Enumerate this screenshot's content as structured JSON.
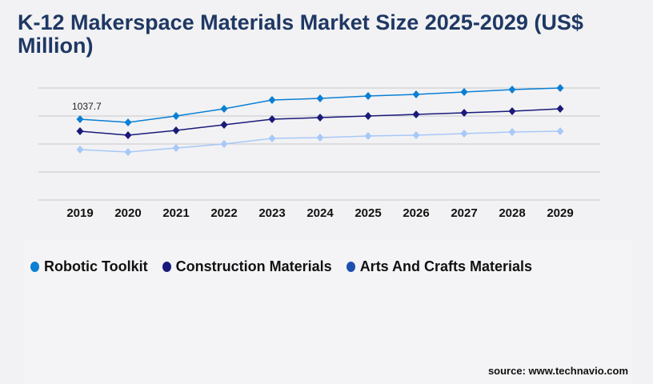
{
  "title": "K-12 Makerspace Materials Market Size 2025-2029 (US$ Million)",
  "source": "source: www.technavio.com",
  "chart_data": {
    "type": "line",
    "title": "K-12 Makerspace Materials Market Size 2025-2029 (US$ Million)",
    "x": [
      "2019",
      "2020",
      "2021",
      "2022",
      "2023",
      "2024",
      "2025",
      "2026",
      "2027",
      "2028",
      "2029"
    ],
    "ylim": [
      0,
      1438.4
    ],
    "grid": true,
    "legend": "bottom-left",
    "annotations": [
      {
        "series": "Robotic Toolkit",
        "x": "2019",
        "label": "1037.7"
      }
    ],
    "series": [
      {
        "name": "Robotic Toolkit",
        "color": "#0a7fd4",
        "legend_color": "#0a7fd4",
        "values": [
          1037.7,
          996.6,
          1078.8,
          1171.2,
          1284.3,
          1304.8,
          1335.6,
          1356.2,
          1387.0,
          1417.8,
          1438.4
        ]
      },
      {
        "name": "Construction Materials",
        "color": "#1a1a7a",
        "legend_color": "#1a1a7a",
        "values": [
          883.6,
          832.2,
          893.8,
          965.8,
          1037.7,
          1058.2,
          1078.8,
          1099.3,
          1119.9,
          1140.4,
          1171.2
        ]
      },
      {
        "name": "Arts And Crafts Materials",
        "color": "#a8c8f8",
        "legend_color": "#1e4fb0",
        "values": [
          647.3,
          616.4,
          667.8,
          719.2,
          791.1,
          801.4,
          821.9,
          832.2,
          852.8,
          873.3,
          883.6
        ]
      }
    ]
  }
}
